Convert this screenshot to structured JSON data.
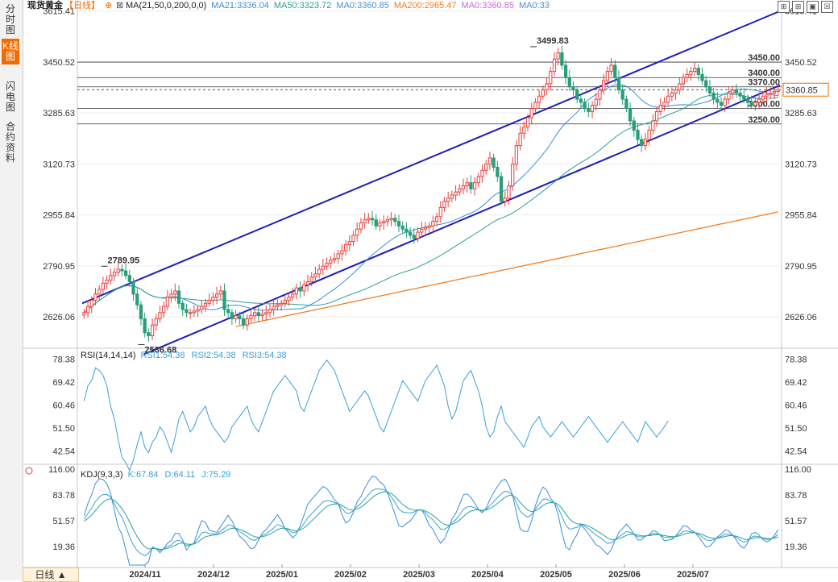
{
  "sidebar": {
    "tabs": [
      {
        "label": "分时图",
        "active": false
      },
      {
        "label": "K线图",
        "active": true
      },
      {
        "label": "闪电图",
        "active": false
      },
      {
        "label": "合约资料",
        "active": false
      }
    ]
  },
  "header": {
    "symbol": "现货黄金",
    "period": "【日线】",
    "settings_icon": "plus-circle-icon",
    "ma_label": "MA(21,50,0,200,0,0)",
    "ma_values": [
      {
        "label": "MA21:3336.04",
        "color": "#3a8fd8"
      },
      {
        "label": "MA50:3323.72",
        "color": "#2aa198"
      },
      {
        "label": "MA0:3360.85",
        "color": "#4a90d9"
      },
      {
        "label": "MA200:2965.47",
        "color": "#f07d22"
      },
      {
        "label": "MA0:3360.85",
        "color": "#c76bd9"
      },
      {
        "label": "MA0:33",
        "color": "#4a90d9"
      }
    ],
    "tools": [
      "grid-icon",
      "grid-icon",
      "window-icon",
      "close-icon"
    ]
  },
  "bottom_tab": {
    "label": "日线 ▲"
  },
  "colors": {
    "up": "#e8413c",
    "down": "#2a9d7a",
    "channel": "#1f1fb5",
    "ma21": "#3a8fd8",
    "ma50": "#2aa198",
    "ma200": "#f07d22",
    "kdj_k": "#3aa0d8",
    "kdj_d": "#2aa198",
    "kdj_j": "#3a8fd8",
    "rsi": "#3aa0d8"
  },
  "chart_data": [
    {
      "type": "candlestick",
      "title": "现货黄金",
      "x_dates": [
        "2024-10-21",
        "2025-07-31"
      ],
      "x_tick_labels": [
        "2024/11",
        "2024/12",
        "2025/01",
        "2025/02",
        "2025/03",
        "2025/04",
        "2025/05",
        "2025/06",
        "2025/07"
      ],
      "y_ticks": [
        2626.06,
        2790.95,
        2955.84,
        3120.73,
        3285.63,
        3450.52,
        3615.41
      ],
      "ylim": [
        2530,
        3630
      ],
      "current_price": 3360.85,
      "annotations": [
        {
          "label": "2789.95",
          "value": 2789.95,
          "date": "2024-10-30",
          "kind": "high"
        },
        {
          "label": "2536.68",
          "value": 2536.68,
          "date": "2024-11-14",
          "kind": "low"
        },
        {
          "label": "3499.83",
          "value": 3499.83,
          "date": "2025-04-22",
          "kind": "high"
        }
      ],
      "horizontal_levels": [
        {
          "label": "3450.00",
          "value": 3450.0
        },
        {
          "label": "3400.00",
          "value": 3400.0
        },
        {
          "label": "3370.00",
          "value": 3370.0
        },
        {
          "label": "3300.00",
          "value": 3300.0
        },
        {
          "label": "3250.00",
          "value": 3250.0
        }
      ],
      "channel": {
        "upper": [
          {
            "date": "2024-10-21",
            "value": 2670
          },
          {
            "date": "2025-07-31",
            "value": 3615
          }
        ],
        "lower": [
          {
            "date": "2024-11-15",
            "value": 2505
          },
          {
            "date": "2025-07-31",
            "value": 3375
          }
        ]
      },
      "series_closes": [
        2640,
        2660,
        2680,
        2700,
        2715,
        2735,
        2745,
        2760,
        2770,
        2780,
        2775,
        2760,
        2740,
        2700,
        2665,
        2620,
        2575,
        2565,
        2600,
        2620,
        2640,
        2660,
        2690,
        2700,
        2710,
        2670,
        2650,
        2640,
        2640,
        2645,
        2650,
        2660,
        2670,
        2680,
        2690,
        2700,
        2710,
        2650,
        2640,
        2620,
        2630,
        2620,
        2600,
        2620,
        2630,
        2640,
        2630,
        2635,
        2640,
        2650,
        2660,
        2665,
        2670,
        2680,
        2690,
        2700,
        2720,
        2710,
        2730,
        2740,
        2755,
        2765,
        2780,
        2790,
        2800,
        2810,
        2815,
        2830,
        2840,
        2860,
        2870,
        2890,
        2910,
        2930,
        2940,
        2945,
        2940,
        2920,
        2930,
        2935,
        2940,
        2945,
        2935,
        2920,
        2910,
        2900,
        2890,
        2880,
        2900,
        2910,
        2915,
        2920,
        2935,
        2950,
        2980,
        3000,
        3010,
        3020,
        3030,
        3040,
        3050,
        3060,
        3040,
        3060,
        3080,
        3100,
        3120,
        3140,
        3110,
        3080,
        3000,
        3010,
        3050,
        3120,
        3180,
        3220,
        3240,
        3270,
        3300,
        3320,
        3340,
        3360,
        3380,
        3420,
        3460,
        3480,
        3440,
        3400,
        3370,
        3360,
        3330,
        3320,
        3300,
        3290,
        3310,
        3330,
        3360,
        3390,
        3420,
        3440,
        3400,
        3360,
        3330,
        3300,
        3260,
        3230,
        3200,
        3180,
        3200,
        3230,
        3260,
        3290,
        3310,
        3320,
        3340,
        3350,
        3360,
        3380,
        3400,
        3410,
        3420,
        3430,
        3410,
        3390,
        3370,
        3350,
        3330,
        3320,
        3310,
        3330,
        3350,
        3360,
        3350,
        3340,
        3330,
        3320,
        3310,
        3320,
        3330,
        3340,
        3345,
        3350,
        3355,
        3360.85
      ],
      "series": [
        {
          "name": "MA21",
          "last": 3336.04
        },
        {
          "name": "MA50",
          "last": 3323.72
        },
        {
          "name": "MA200",
          "last": 2965.47
        }
      ]
    },
    {
      "type": "line",
      "title": "RSI(14,14,14)",
      "legend": [
        "RSI1:54.38",
        "RSI2:54.38",
        "RSI3:54.38"
      ],
      "y_ticks": [
        42.54,
        51.5,
        60.46,
        69.42,
        78.38
      ],
      "ylim": [
        38,
        82
      ],
      "values": [
        62,
        68,
        70,
        75,
        74,
        72,
        68,
        60,
        55,
        47,
        40,
        38,
        35,
        39,
        45,
        50,
        44,
        42,
        46,
        48,
        52,
        50,
        46,
        42,
        48,
        55,
        58,
        54,
        50,
        52,
        56,
        58,
        60,
        55,
        52,
        50,
        48,
        46,
        48,
        52,
        54,
        56,
        58,
        60,
        55,
        52,
        50,
        54,
        58,
        62,
        66,
        68,
        70,
        72,
        70,
        68,
        66,
        60,
        58,
        62,
        66,
        70,
        74,
        76,
        78,
        76,
        74,
        70,
        66,
        62,
        58,
        60,
        62,
        64,
        66,
        64,
        60,
        56,
        52,
        50,
        54,
        58,
        62,
        66,
        70,
        68,
        66,
        64,
        62,
        66,
        70,
        72,
        74,
        76,
        72,
        68,
        60,
        55,
        58,
        64,
        70,
        72,
        74,
        70,
        66,
        60,
        52,
        48,
        50,
        56,
        60,
        54,
        52,
        50,
        48,
        46,
        44,
        48,
        52,
        54,
        56,
        52,
        50,
        48,
        50,
        52,
        54,
        52,
        50,
        48,
        50,
        52,
        54,
        56,
        54,
        52,
        50,
        48,
        46,
        48,
        50,
        52,
        54,
        52,
        50,
        48,
        46,
        50,
        54,
        52,
        50,
        48,
        50,
        52,
        54.38
      ]
    },
    {
      "type": "line",
      "title": "KDJ(9,3,3)",
      "legend": [
        "K:67.84",
        "D:64.11",
        "J:75.29"
      ],
      "y_ticks": [
        19.36,
        51.57,
        83.78,
        116.0
      ],
      "ylim": [
        -5,
        120
      ],
      "series": [
        {
          "name": "K",
          "last": 67.84
        },
        {
          "name": "D",
          "last": 64.11
        },
        {
          "name": "J",
          "last": 75.29
        }
      ]
    }
  ]
}
